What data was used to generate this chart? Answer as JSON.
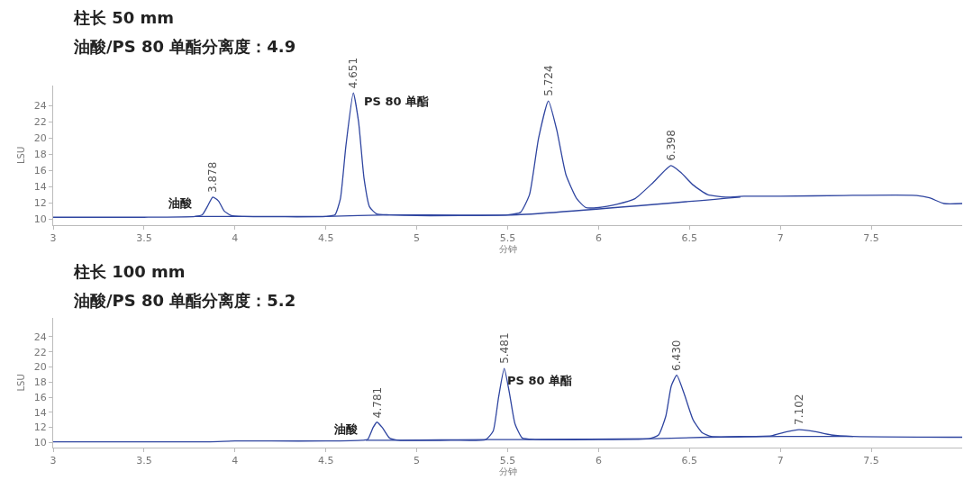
{
  "chart_data": [
    {
      "type": "line",
      "title": "柱长 50 mm",
      "subtitle": "油酸/PS 80 单酯分离度：4.9",
      "xlabel": "分钟",
      "ylabel": "LSU",
      "xlim": [
        3,
        8
      ],
      "xticks": [
        3,
        3.5,
        4,
        4.5,
        5,
        5.5,
        6,
        6.5,
        7,
        7.5
      ],
      "ylim": [
        9.25,
        26.5
      ],
      "yticks": [
        10,
        12,
        14,
        16,
        18,
        20,
        22,
        24
      ],
      "series": [
        {
          "color": "#2f45a0",
          "x": [
            3.0,
            3.5,
            3.78,
            3.82,
            3.85,
            3.878,
            3.91,
            3.94,
            3.98,
            4.05,
            4.5,
            4.55,
            4.58,
            4.61,
            4.651,
            4.68,
            4.71,
            4.74,
            4.78,
            4.85,
            5.0,
            5.5,
            5.57,
            5.62,
            5.67,
            5.724,
            5.77,
            5.82,
            5.88,
            5.93,
            6.0,
            6.1,
            6.2,
            6.3,
            6.398,
            6.45,
            6.52,
            6.6,
            6.7,
            6.8,
            7.0,
            7.35,
            7.75,
            7.82,
            7.9,
            8.0
          ],
          "values": [
            10.2,
            10.2,
            10.3,
            10.5,
            11.6,
            12.7,
            12.2,
            11.0,
            10.4,
            10.3,
            10.3,
            10.5,
            12.5,
            19.0,
            25.6,
            22.0,
            15.0,
            11.5,
            10.6,
            10.5,
            10.4,
            10.5,
            10.8,
            13.0,
            20.0,
            24.6,
            21.0,
            15.5,
            12.5,
            11.4,
            11.4,
            11.8,
            12.5,
            14.5,
            16.6,
            15.8,
            14.2,
            13.0,
            12.7,
            12.8,
            12.8,
            12.9,
            12.9,
            12.6,
            11.9,
            11.9
          ]
        },
        {
          "color": "#2f45a0",
          "x": [
            3.78,
            3.98,
            4.5,
            4.85,
            5.55,
            6.78
          ],
          "values": [
            10.3,
            10.3,
            10.3,
            10.5,
            10.5,
            12.7
          ]
        }
      ],
      "annotations": [
        {
          "text": "3.878",
          "x": 3.878,
          "y": 12.7
        },
        {
          "text": "4.651",
          "x": 4.651,
          "y": 25.6
        },
        {
          "text": "5.724",
          "x": 5.724,
          "y": 24.6
        },
        {
          "text": "6.398",
          "x": 6.398,
          "y": 16.6
        },
        "油酸",
        "PS 80 单酯"
      ]
    },
    {
      "type": "line",
      "title": "柱长 100 mm",
      "subtitle": "油酸/PS 80 单酯分离度：5.2",
      "xlabel": "分钟",
      "ylabel": "LSU",
      "xlim": [
        3,
        8
      ],
      "xticks": [
        3,
        3.5,
        4,
        4.5,
        5,
        5.5,
        6,
        6.5,
        7,
        7.5
      ],
      "ylim": [
        9.35,
        26.5
      ],
      "yticks": [
        10,
        12,
        14,
        16,
        18,
        20,
        22,
        24
      ],
      "series": [
        {
          "color": "#2f45a0",
          "x": [
            3.0,
            3.85,
            4.0,
            4.2,
            4.5,
            4.7,
            4.73,
            4.76,
            4.781,
            4.81,
            4.85,
            4.9,
            5.2,
            5.38,
            5.42,
            5.45,
            5.481,
            5.51,
            5.54,
            5.58,
            5.65,
            6.0,
            6.28,
            6.33,
            6.37,
            6.4,
            6.43,
            6.47,
            6.52,
            6.57,
            6.62,
            6.8,
            6.95,
            7.03,
            7.102,
            7.18,
            7.28,
            7.4,
            8.0
          ],
          "values": [
            10.1,
            10.1,
            10.2,
            10.2,
            10.2,
            10.3,
            10.4,
            12.0,
            12.7,
            12.0,
            10.6,
            10.3,
            10.3,
            10.4,
            11.5,
            16.0,
            19.8,
            16.5,
            12.5,
            10.6,
            10.4,
            10.4,
            10.5,
            11.0,
            13.5,
            17.5,
            18.9,
            16.5,
            13.0,
            11.3,
            10.8,
            10.8,
            10.9,
            11.4,
            11.7,
            11.5,
            11.0,
            10.8,
            10.7
          ]
        },
        {
          "color": "#2f45a0",
          "x": [
            4.72,
            4.88,
            5.38,
            5.6,
            6.3,
            6.6,
            7.0,
            7.4
          ],
          "values": [
            10.3,
            10.3,
            10.4,
            10.4,
            10.5,
            10.7,
            10.8,
            10.8
          ]
        }
      ],
      "annotations": [
        {
          "text": "4.781",
          "x": 4.781,
          "y": 12.7
        },
        {
          "text": "5.481",
          "x": 5.481,
          "y": 19.8
        },
        {
          "text": "6.430",
          "x": 6.43,
          "y": 18.9
        },
        {
          "text": "7.102",
          "x": 7.102,
          "y": 11.7
        },
        "油酸",
        "PS 80 单酯"
      ]
    }
  ]
}
